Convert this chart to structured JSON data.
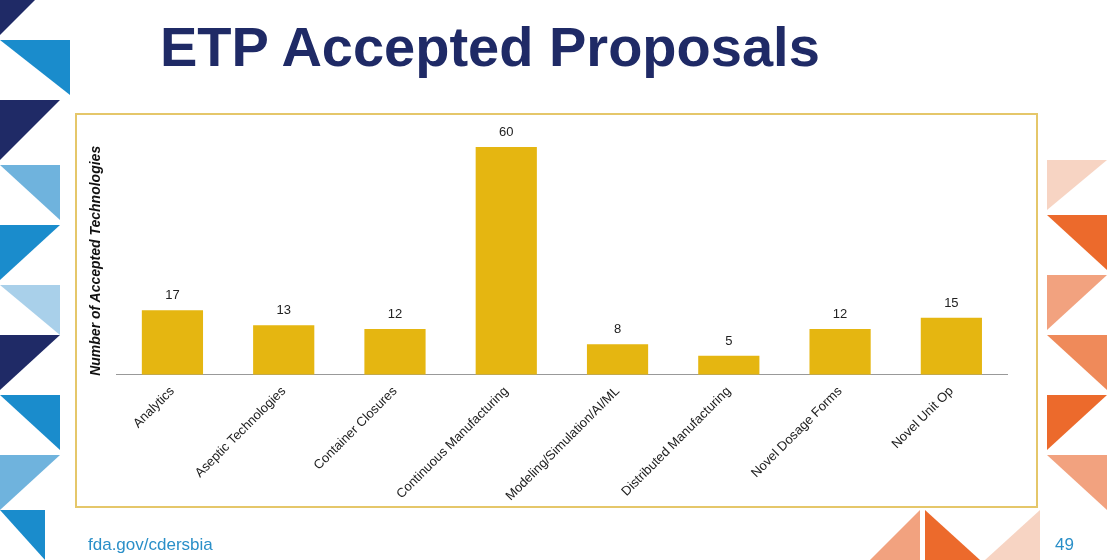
{
  "chart_data": {
    "type": "bar",
    "title": "ETP Accepted Proposals",
    "ylabel": "Number of Accepted Technologies",
    "categories": [
      "Analytics",
      "Aseptic Technologies",
      "Container Closures",
      "Continuous Manufacturing",
      "Modeling/Simulation/AI/ML",
      "Distributed Manufacturing",
      "Novel Dosage Forms",
      "Novel Unit Op"
    ],
    "values": [
      17,
      13,
      12,
      60,
      8,
      5,
      12,
      15
    ],
    "color": "#e5b611",
    "data_labels": true,
    "grid": false,
    "legend": false,
    "annotations": [
      "fda.gov/cdersbia",
      "49"
    ]
  }
}
